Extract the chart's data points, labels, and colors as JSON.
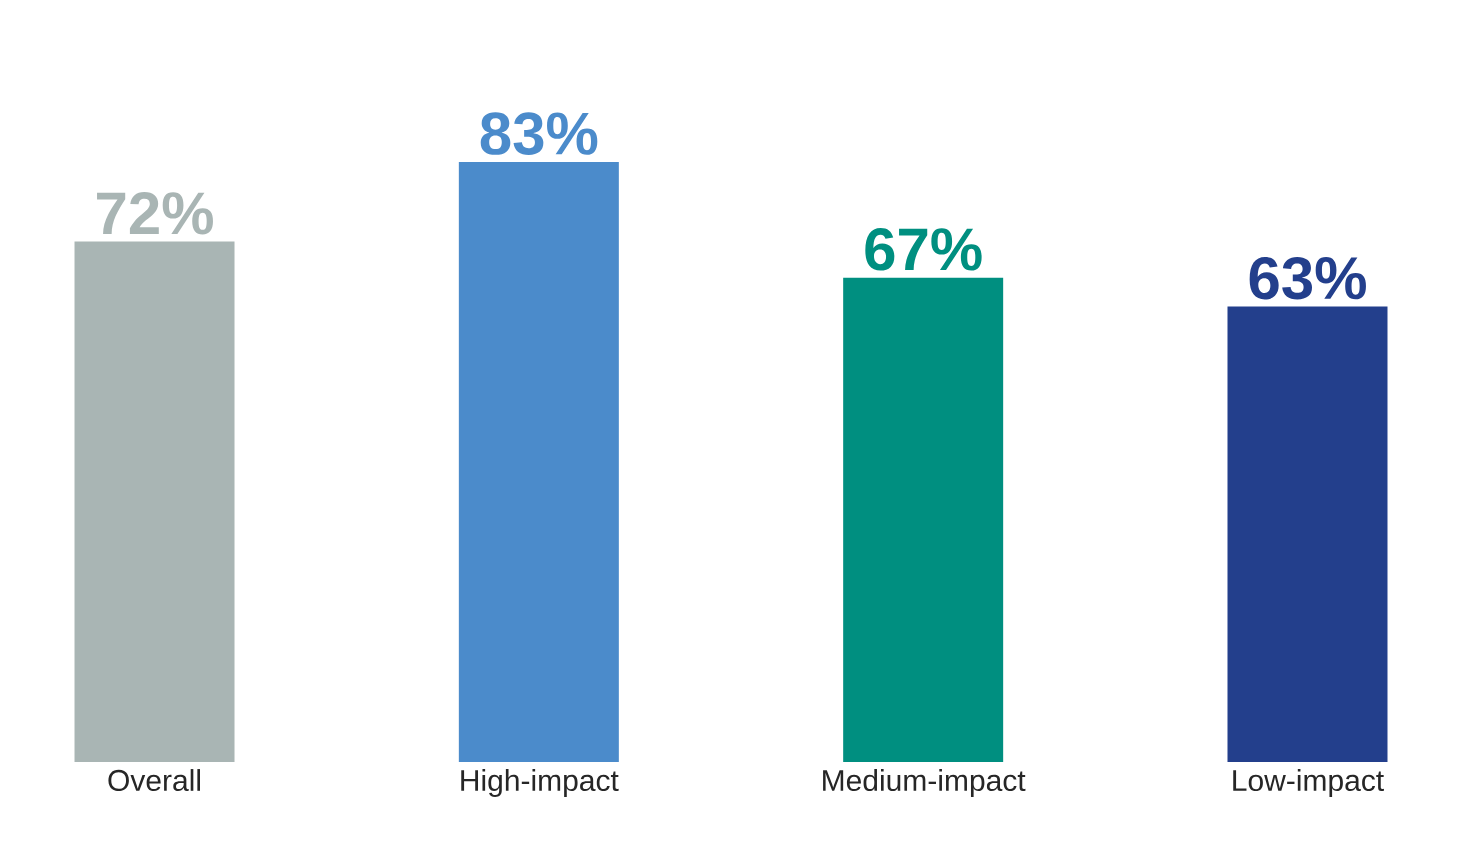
{
  "chart_data": {
    "type": "bar",
    "categories": [
      "Overall",
      "High-impact",
      "Medium-impact",
      "Low-impact"
    ],
    "values": [
      72,
      83,
      67,
      63
    ],
    "colors": [
      "#a9b5b4",
      "#4b8bcb",
      "#008f80",
      "#233f8c"
    ],
    "value_labels": [
      "72%",
      "83%",
      "67%",
      "63%"
    ],
    "data_labels": false
  }
}
